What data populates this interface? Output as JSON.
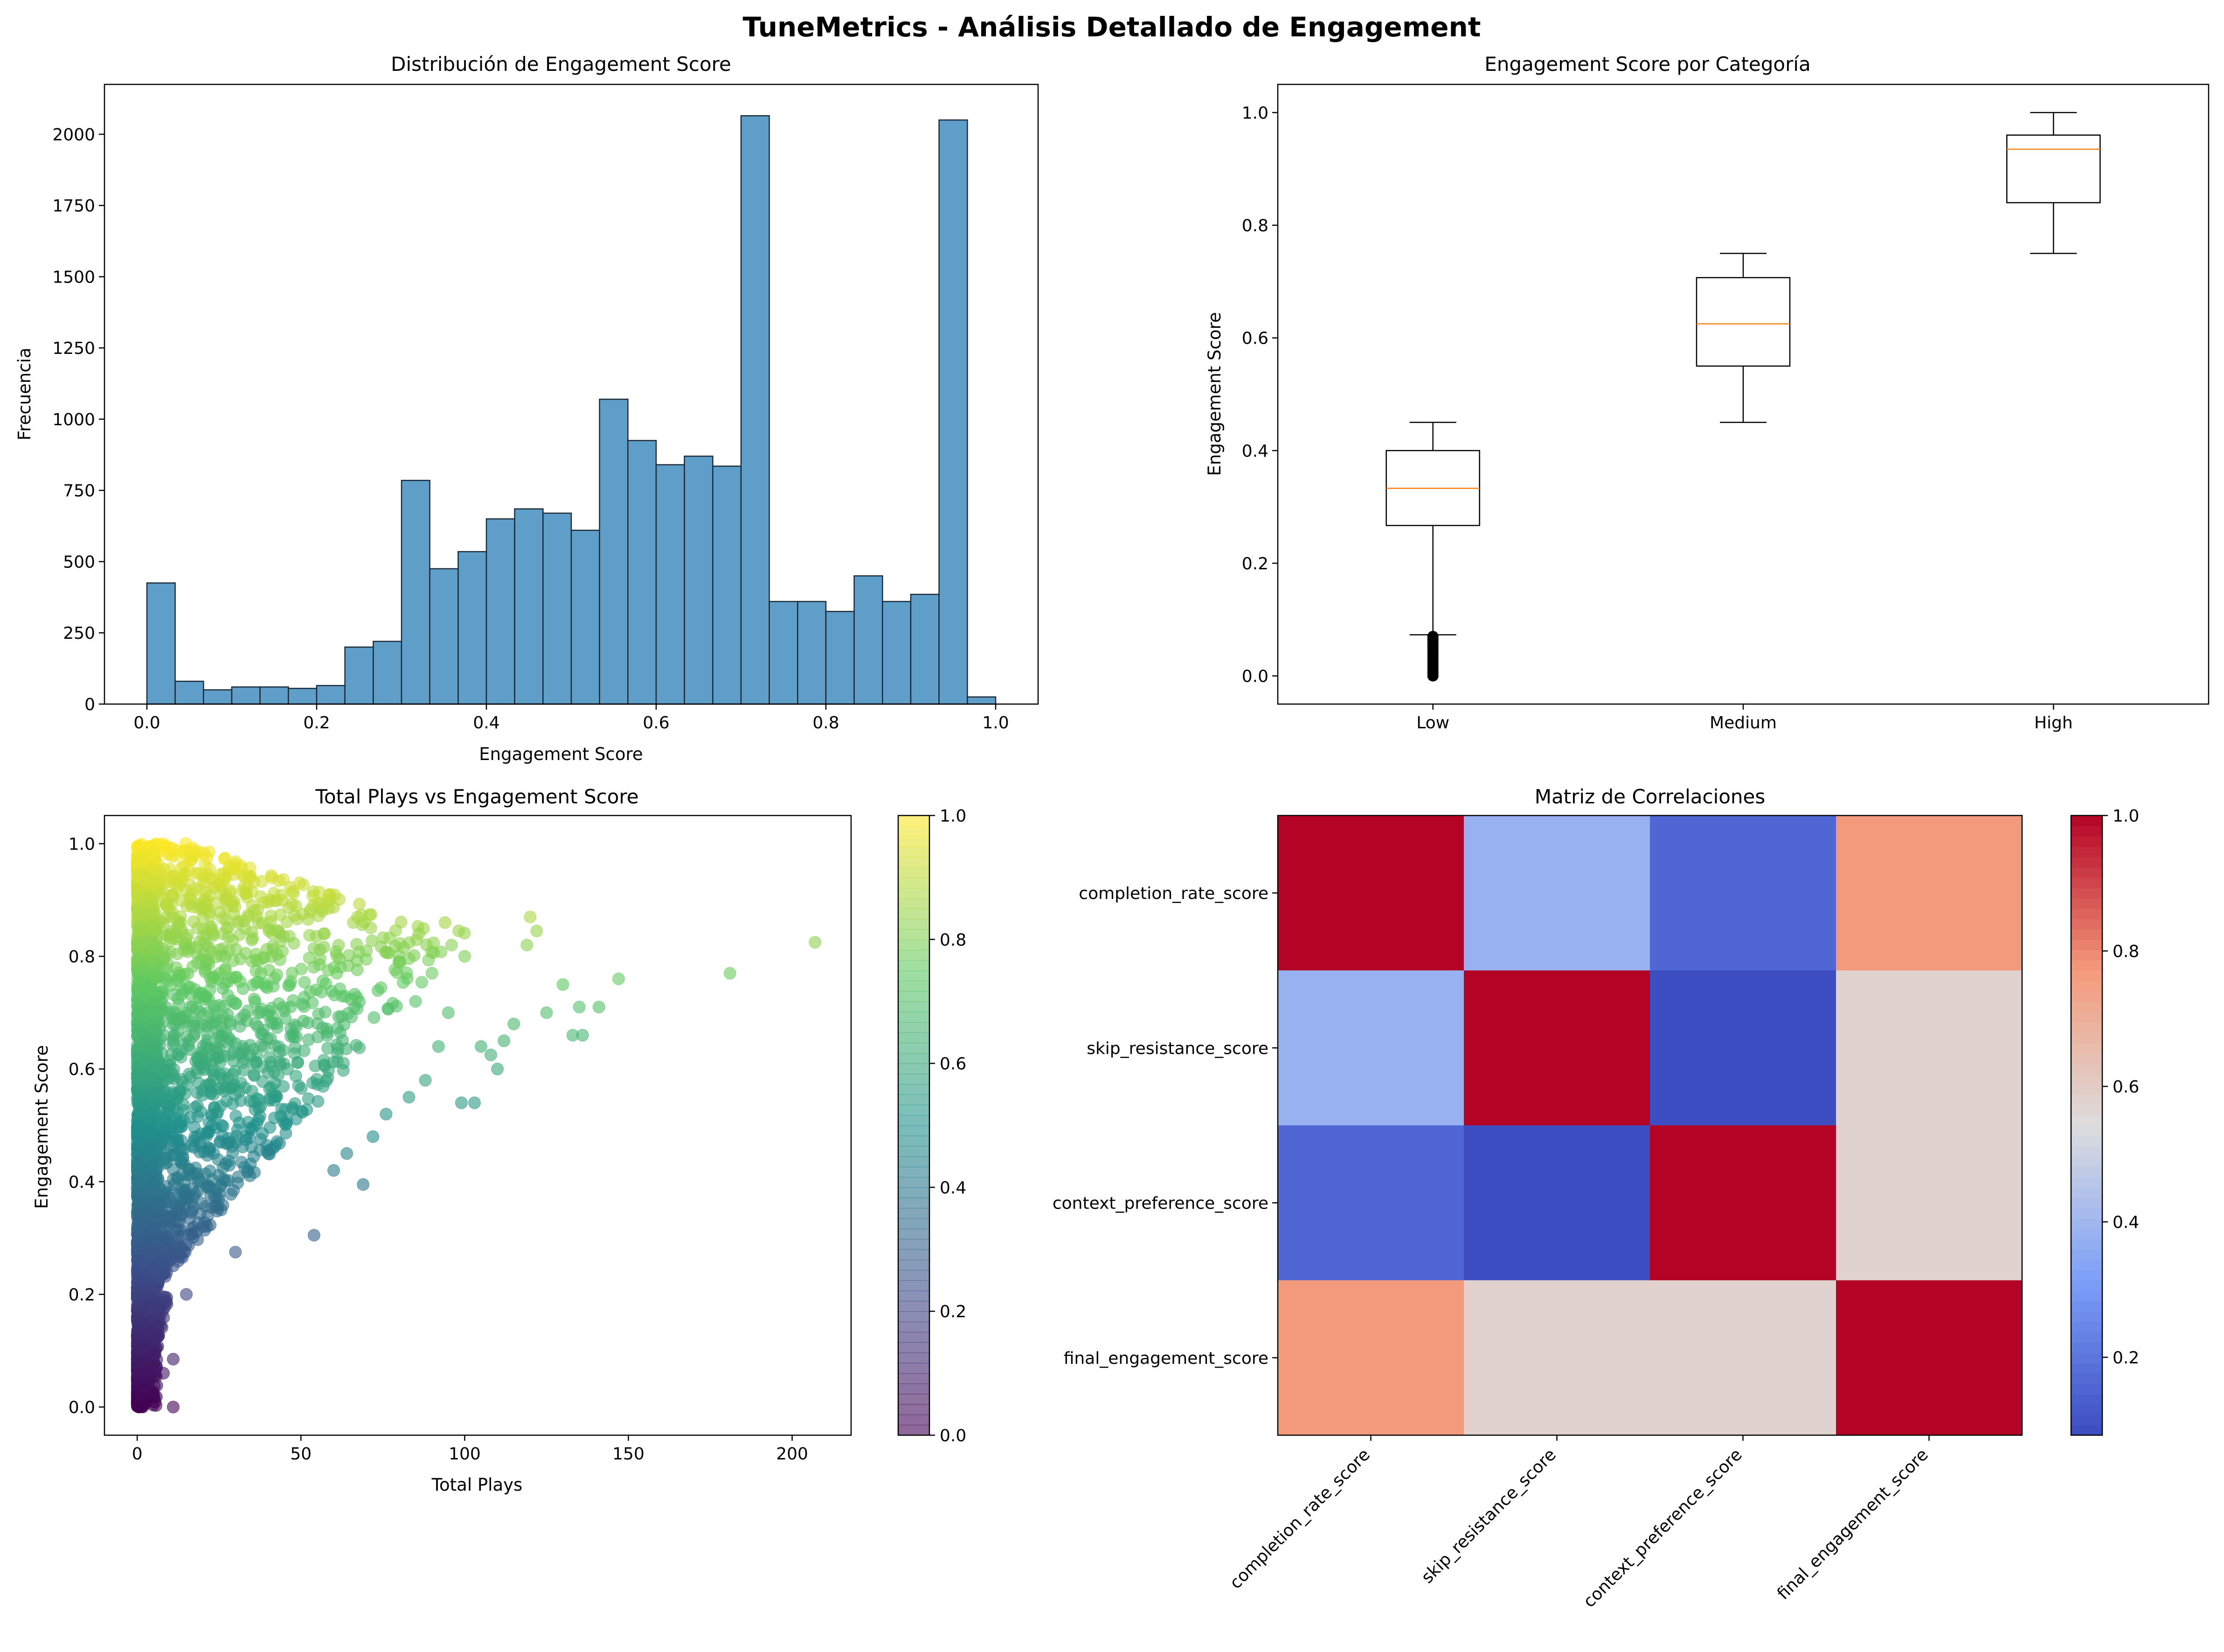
{
  "suptitle": "TuneMetrics - Análisis Detallado de Engagement",
  "chart_data": [
    {
      "type": "bar",
      "title": "Distribución de Engagement Score",
      "xlabel": "Engagement Score",
      "ylabel": "Frecuencia",
      "xlim": [
        -0.05,
        1.05
      ],
      "ylim": [
        0,
        2175
      ],
      "xticks": [
        "0.0",
        "0.2",
        "0.4",
        "0.6",
        "0.8",
        "1.0"
      ],
      "yticks": [
        "0",
        "250",
        "500",
        "750",
        "1000",
        "1250",
        "1500",
        "1750",
        "2000"
      ],
      "bin_edges": [
        0.0,
        0.0333,
        0.0667,
        0.1,
        0.1333,
        0.1667,
        0.2,
        0.2333,
        0.2667,
        0.3,
        0.3333,
        0.3667,
        0.4,
        0.4333,
        0.4667,
        0.5,
        0.5333,
        0.5667,
        0.6,
        0.6333,
        0.6667,
        0.7,
        0.7333,
        0.7667,
        0.8,
        0.8333,
        0.8667,
        0.9,
        0.9333,
        0.9667,
        1.0
      ],
      "values": [
        425,
        80,
        50,
        60,
        60,
        55,
        65,
        200,
        220,
        785,
        475,
        535,
        650,
        685,
        670,
        610,
        1070,
        925,
        840,
        870,
        835,
        2065,
        360,
        360,
        325,
        450,
        360,
        385,
        2050,
        25
      ],
      "colors": {
        "bar": "#5f9ec9",
        "edge": "#1b2a37"
      }
    },
    {
      "type": "box",
      "title": "Engagement Score por Categoría",
      "xlabel": "",
      "ylabel": "Engagement Score",
      "ylim": [
        -0.05,
        1.05
      ],
      "yticks": [
        "0.0",
        "0.2",
        "0.4",
        "0.6",
        "0.8",
        "1.0"
      ],
      "categories": [
        "Low",
        "Medium",
        "High"
      ],
      "boxes": [
        {
          "whisker_low": 0.073,
          "q1": 0.267,
          "median": 0.333,
          "q3": 0.4,
          "whisker_high": 0.45,
          "outliers_from": 0.0,
          "outliers_to": 0.07
        },
        {
          "whisker_low": 0.45,
          "q1": 0.55,
          "median": 0.625,
          "q3": 0.707,
          "whisker_high": 0.75
        },
        {
          "whisker_low": 0.75,
          "q1": 0.84,
          "median": 0.935,
          "q3": 0.96,
          "whisker_high": 1.0
        }
      ],
      "colors": {
        "median": "#ff7f0e"
      }
    },
    {
      "type": "scatter",
      "title": "Total Plays vs Engagement Score",
      "xlabel": "Total Plays",
      "ylabel": "Engagement Score",
      "xlim": [
        -10,
        218
      ],
      "ylim": [
        -0.05,
        1.05
      ],
      "xticks": [
        "0",
        "50",
        "100",
        "150",
        "200"
      ],
      "yticks": [
        "0.0",
        "0.2",
        "0.4",
        "0.6",
        "0.8",
        "1.0"
      ],
      "colorbar_ticks": [
        "0.0",
        "0.2",
        "0.4",
        "0.6",
        "0.8",
        "1.0"
      ],
      "colormap": "viridis",
      "highlight_points": [
        {
          "x": 207,
          "y": 0.825
        },
        {
          "x": 181,
          "y": 0.77
        },
        {
          "x": 147,
          "y": 0.76
        },
        {
          "x": 141,
          "y": 0.71
        },
        {
          "x": 135,
          "y": 0.71
        },
        {
          "x": 136,
          "y": 0.66
        },
        {
          "x": 133,
          "y": 0.66
        },
        {
          "x": 120,
          "y": 0.87
        },
        {
          "x": 122,
          "y": 0.845
        },
        {
          "x": 119,
          "y": 0.82
        },
        {
          "x": 108,
          "y": 0.625
        },
        {
          "x": 103,
          "y": 0.54
        },
        {
          "x": 99,
          "y": 0.54
        },
        {
          "x": 94,
          "y": 0.86
        },
        {
          "x": 96,
          "y": 0.82
        },
        {
          "x": 100,
          "y": 0.8
        },
        {
          "x": 86,
          "y": 0.84
        },
        {
          "x": 54,
          "y": 0.305
        },
        {
          "x": 69,
          "y": 0.395
        },
        {
          "x": 11,
          "y": 0.0
        },
        {
          "x": 8,
          "y": 1.0
        },
        {
          "x": 5,
          "y": 0.985
        },
        {
          "x": 10,
          "y": 0.94
        },
        {
          "x": 12,
          "y": 0.93
        },
        {
          "x": 16,
          "y": 0.905
        },
        {
          "x": 5,
          "y": 0.12
        },
        {
          "x": 8,
          "y": 0.06
        },
        {
          "x": 11,
          "y": 0.085
        },
        {
          "x": 15,
          "y": 0.2
        },
        {
          "x": 30,
          "y": 0.275
        },
        {
          "x": 130,
          "y": 0.75
        },
        {
          "x": 125,
          "y": 0.7
        },
        {
          "x": 115,
          "y": 0.68
        },
        {
          "x": 112,
          "y": 0.65
        },
        {
          "x": 105,
          "y": 0.64
        },
        {
          "x": 110,
          "y": 0.6
        },
        {
          "x": 92,
          "y": 0.64
        },
        {
          "x": 88,
          "y": 0.58
        },
        {
          "x": 83,
          "y": 0.55
        },
        {
          "x": 76,
          "y": 0.52
        },
        {
          "x": 72,
          "y": 0.48
        },
        {
          "x": 64,
          "y": 0.45
        },
        {
          "x": 60,
          "y": 0.42
        },
        {
          "x": 57,
          "y": 0.84
        },
        {
          "x": 70,
          "y": 0.81
        },
        {
          "x": 66,
          "y": 0.86
        },
        {
          "x": 80,
          "y": 0.79
        },
        {
          "x": 90,
          "y": 0.77
        },
        {
          "x": 95,
          "y": 0.7
        },
        {
          "x": 85,
          "y": 0.72
        }
      ]
    },
    {
      "type": "heatmap",
      "title": "Matriz de Correlaciones",
      "labels": [
        "completion_rate_score",
        "skip_resistance_score",
        "context_preference_score",
        "final_engagement_score"
      ],
      "matrix": [
        [
          1.0,
          0.38,
          0.16,
          0.77
        ],
        [
          0.38,
          1.0,
          0.09,
          0.58
        ],
        [
          0.16,
          0.09,
          1.0,
          0.58
        ],
        [
          0.77,
          0.58,
          0.58,
          1.0
        ]
      ],
      "colormap": "coolwarm",
      "colorbar_ticks": [
        "0.2",
        "0.4",
        "0.6",
        "0.8",
        "1.0"
      ],
      "colorbar_range": [
        0.085,
        1.0
      ]
    }
  ]
}
